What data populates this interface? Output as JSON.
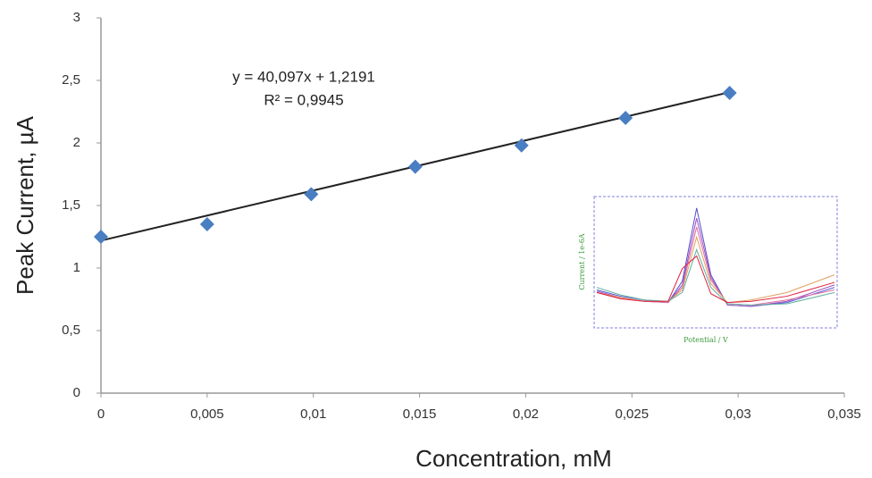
{
  "chart_data": [
    {
      "type": "scatter",
      "x_label": "Concentration, mM",
      "y_label": "Peak Current, µA",
      "equation": "y = 40,097x + 1,2191",
      "r_squared": "R² = 0,9945",
      "trendline": {
        "slope": 40.097,
        "intercept": 1.2191,
        "color": "#222222"
      },
      "x": [
        0,
        0.005,
        0.0099,
        0.0148,
        0.0198,
        0.0247,
        0.0296
      ],
      "series": [
        {
          "name": "Peak current",
          "color": "#4a7ec2",
          "values": [
            1.25,
            1.35,
            1.59,
            1.81,
            1.98,
            2.2,
            2.4
          ]
        }
      ],
      "xlim": [
        0,
        0.035
      ],
      "xticks": [
        0,
        {
          "value": 0.005,
          "label": "0,005"
        },
        {
          "value": 0.01,
          "label": "0,01"
        },
        {
          "value": 0.015,
          "label": "0,015"
        },
        {
          "value": 0.02,
          "label": "0,02"
        },
        {
          "value": 0.025,
          "label": "0,025"
        },
        {
          "value": 0.03,
          "label": "0,03"
        },
        {
          "value": 0.035,
          "label": "0,035"
        }
      ],
      "ylim": [
        0,
        3
      ],
      "yticks": [
        0,
        {
          "value": 0.5,
          "label": "0,5"
        },
        1,
        {
          "value": 1.5,
          "label": "1,5"
        },
        2,
        {
          "value": 2.5,
          "label": "2,5"
        },
        3
      ],
      "grid": false
    },
    {
      "type": "line",
      "x_label": "Potential / V",
      "y_label": "Current / 1e-6A",
      "x": [
        0,
        0.1,
        0.2,
        0.3,
        0.36,
        0.42,
        0.48,
        0.55,
        0.65,
        0.8,
        1.0
      ],
      "series": [
        {
          "color": "#5050d0",
          "values": [
            2.8,
            2.3,
            2.0,
            1.8,
            3.5,
            9.3,
            4.0,
            1.6,
            1.5,
            1.8,
            3.0
          ]
        },
        {
          "color": "#a050c0",
          "values": [
            2.7,
            2.2,
            1.9,
            1.8,
            3.2,
            8.5,
            3.8,
            1.6,
            1.5,
            1.9,
            3.2
          ]
        },
        {
          "color": "#e070a0",
          "values": [
            2.6,
            2.1,
            1.9,
            1.8,
            3.0,
            7.8,
            3.6,
            1.7,
            1.6,
            2.0,
            2.8
          ]
        },
        {
          "color": "#e0a060",
          "values": [
            2.6,
            2.2,
            1.9,
            1.9,
            2.8,
            7.0,
            3.3,
            1.8,
            2.0,
            2.6,
            4.0
          ]
        },
        {
          "color": "#60b0a0",
          "values": [
            3.0,
            2.4,
            2.0,
            1.9,
            2.6,
            6.0,
            3.0,
            1.7,
            1.6,
            1.7,
            2.6
          ]
        },
        {
          "color": "#e02040",
          "values": [
            2.6,
            2.1,
            1.9,
            1.9,
            4.5,
            5.5,
            2.5,
            1.8,
            1.9,
            2.3,
            3.4
          ]
        }
      ],
      "xlim": [
        0,
        1
      ],
      "ylim": [
        0,
        10
      ]
    }
  ]
}
